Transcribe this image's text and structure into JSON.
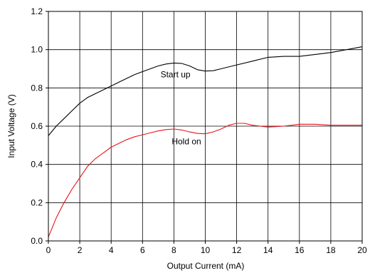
{
  "chart_data": {
    "type": "line",
    "xlabel": "Output Current (mA)",
    "ylabel": "Input Voltage (V)",
    "xlim": [
      0,
      20
    ],
    "ylim": [
      0.0,
      1.2
    ],
    "x_ticks": [
      "0",
      "2",
      "4",
      "6",
      "8",
      "10",
      "12",
      "14",
      "16",
      "18",
      "20"
    ],
    "y_ticks": [
      "0.0",
      "0.2",
      "0.4",
      "0.6",
      "0.8",
      "1.0",
      "1.2"
    ],
    "grid": true,
    "annotations": [
      {
        "text": "Start up",
        "x": 8.1,
        "y": 0.855
      },
      {
        "text": "Hold on",
        "x": 8.8,
        "y": 0.505
      }
    ],
    "series": [
      {
        "name": "Start up",
        "color": "#000000",
        "x": [
          0,
          0.5,
          1,
          1.5,
          2,
          2.5,
          3,
          3.5,
          4,
          4.5,
          5,
          5.5,
          6,
          6.5,
          7,
          7.5,
          8,
          8.5,
          9,
          9.5,
          10,
          10.5,
          11,
          12,
          13,
          14,
          15,
          16,
          17,
          18,
          19,
          20
        ],
        "values": [
          0.55,
          0.6,
          0.64,
          0.68,
          0.72,
          0.75,
          0.77,
          0.79,
          0.81,
          0.83,
          0.85,
          0.87,
          0.885,
          0.9,
          0.915,
          0.925,
          0.93,
          0.928,
          0.915,
          0.895,
          0.888,
          0.89,
          0.9,
          0.92,
          0.94,
          0.96,
          0.965,
          0.965,
          0.975,
          0.985,
          1.0,
          1.015
        ]
      },
      {
        "name": "Hold on",
        "color": "#e8141c",
        "x": [
          0,
          0.5,
          1,
          1.5,
          2,
          2.5,
          3,
          3.5,
          4,
          4.5,
          5,
          5.5,
          6,
          6.5,
          7,
          7.5,
          8,
          8.5,
          9,
          9.5,
          10,
          10.5,
          11,
          11.5,
          12,
          12.5,
          13,
          14,
          15,
          16,
          17,
          18,
          19,
          20
        ],
        "values": [
          0.02,
          0.12,
          0.2,
          0.27,
          0.33,
          0.39,
          0.43,
          0.46,
          0.49,
          0.51,
          0.53,
          0.545,
          0.555,
          0.565,
          0.575,
          0.582,
          0.585,
          0.58,
          0.57,
          0.562,
          0.56,
          0.57,
          0.585,
          0.605,
          0.615,
          0.615,
          0.605,
          0.595,
          0.6,
          0.61,
          0.61,
          0.605,
          0.605,
          0.605
        ]
      }
    ]
  }
}
